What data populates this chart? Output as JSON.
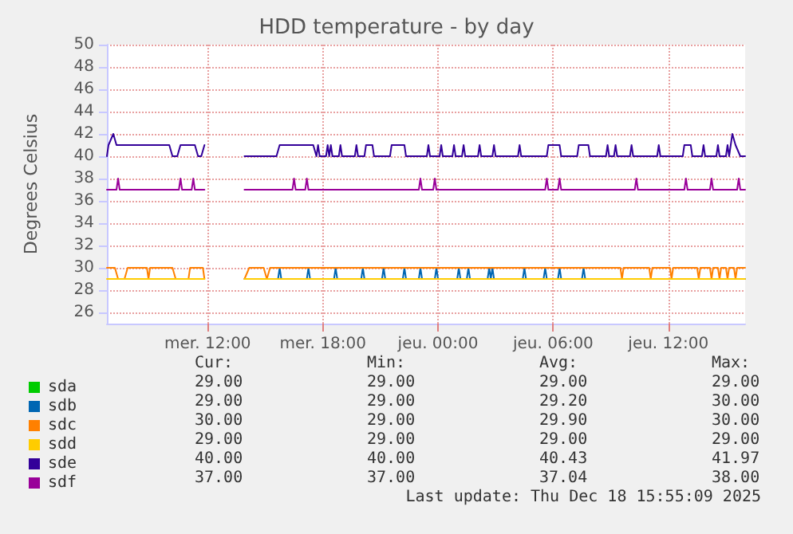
{
  "chart_data": {
    "type": "line",
    "title": "HDD temperature - by day",
    "ylabel": "Degrees Celsius",
    "xlim": [
      "2025-12-17T06:45",
      "2025-12-18T16:00"
    ],
    "xticks": [
      {
        "value": "2025-12-17T12:00",
        "label": "mer. 12:00"
      },
      {
        "value": "2025-12-17T18:00",
        "label": "mer. 18:00"
      },
      {
        "value": "2025-12-18T00:00",
        "label": "jeu. 00:00"
      },
      {
        "value": "2025-12-18T06:00",
        "label": "jeu. 06:00"
      },
      {
        "value": "2025-12-18T12:00",
        "label": "jeu. 12:00"
      }
    ],
    "ylim": [
      25,
      50
    ],
    "yticks": [
      26,
      28,
      30,
      32,
      34,
      36,
      38,
      40,
      42,
      44,
      46,
      48,
      50
    ],
    "grid": true,
    "legend": "bottom left",
    "marker": "none",
    "line_style": "solid",
    "series": [
      {
        "name": "sda",
        "color": "#00cc00"
      },
      {
        "name": "sdb",
        "color": "#0066b3",
        "x": [
          "2025-12-17T13:55",
          "2025-12-17T15:40",
          "2025-12-17T15:45",
          "2025-12-17T15:50",
          "2025-12-17T17:10",
          "2025-12-17T17:15",
          "2025-12-17T17:20",
          "2025-12-17T18:35",
          "2025-12-17T18:40",
          "2025-12-17T18:45",
          "2025-12-17T20:00",
          "2025-12-17T20:05",
          "2025-12-17T20:10",
          "2025-12-17T21:05",
          "2025-12-17T21:10",
          "2025-12-17T21:15",
          "2025-12-17T22:10",
          "2025-12-17T22:15",
          "2025-12-17T22:20",
          "2025-12-17T23:00",
          "2025-12-17T23:05",
          "2025-12-17T23:10",
          "2025-12-17T23:50",
          "2025-12-17T23:55",
          "2025-12-18T00:00",
          "2025-12-18T01:00",
          "2025-12-18T01:05",
          "2025-12-18T01:10",
          "2025-12-18T01:30",
          "2025-12-18T01:35",
          "2025-12-18T01:40",
          "2025-12-18T02:35",
          "2025-12-18T02:40",
          "2025-12-18T02:45",
          "2025-12-18T02:50",
          "2025-12-18T02:55",
          "2025-12-18T04:25",
          "2025-12-18T04:30",
          "2025-12-18T04:35",
          "2025-12-18T05:30",
          "2025-12-18T05:35",
          "2025-12-18T05:40",
          "2025-12-18T06:15",
          "2025-12-18T06:20",
          "2025-12-18T06:25",
          "2025-12-18T07:30",
          "2025-12-18T07:35",
          "2025-12-18T07:40",
          "2025-12-18T16:00"
        ],
        "values": [
          29,
          29,
          30,
          29,
          29,
          30,
          29,
          29,
          30,
          29,
          29,
          30,
          29,
          29,
          30,
          29,
          29,
          30,
          29,
          29,
          30,
          29,
          29,
          30,
          29,
          29,
          30,
          29,
          29,
          30,
          29,
          29,
          30,
          29,
          30,
          29,
          29,
          30,
          29,
          29,
          30,
          29,
          29,
          30,
          29,
          29,
          30,
          29,
          29
        ]
      },
      {
        "name": "sdc",
        "color": "#ff8000",
        "x": [
          "2025-12-17T06:45",
          "2025-12-17T07:10",
          "2025-12-17T07:20",
          "2025-12-17T07:40",
          "2025-12-17T07:50",
          "2025-12-17T08:50",
          "2025-12-17T08:55",
          "2025-12-17T09:00",
          "2025-12-17T10:10",
          "2025-12-17T10:20",
          "2025-12-17T11:00",
          "2025-12-17T11:05",
          "2025-12-17T11:45",
          "2025-12-17T11:50",
          "2025-12-17T12:00",
          "2025-12-17T13:55",
          "2025-12-17T14:10",
          "2025-12-17T14:55",
          "2025-12-17T15:05",
          "2025-12-17T15:15",
          "2025-12-18T09:30",
          "2025-12-18T09:35",
          "2025-12-18T09:40",
          "2025-12-18T11:00",
          "2025-12-18T11:05",
          "2025-12-18T11:10",
          "2025-12-18T12:05",
          "2025-12-18T12:10",
          "2025-12-18T12:15",
          "2025-12-18T13:30",
          "2025-12-18T13:35",
          "2025-12-18T13:40",
          "2025-12-18T14:10",
          "2025-12-18T14:15",
          "2025-12-18T14:20",
          "2025-12-18T14:35",
          "2025-12-18T14:40",
          "2025-12-18T14:45",
          "2025-12-18T15:00",
          "2025-12-18T15:05",
          "2025-12-18T15:10",
          "2025-12-18T15:25",
          "2025-12-18T15:30",
          "2025-12-18T15:35",
          "2025-12-18T16:00"
        ],
        "values": [
          30,
          30,
          29,
          29,
          30,
          30,
          29,
          30,
          30,
          29,
          29,
          30,
          30,
          29,
          null,
          29,
          30,
          30,
          29,
          30,
          30,
          29,
          30,
          30,
          29,
          30,
          30,
          29,
          30,
          30,
          29,
          30,
          30,
          29,
          30,
          30,
          29,
          30,
          30,
          29,
          30,
          30,
          29,
          30,
          30
        ]
      },
      {
        "name": "sdd",
        "color": "#ffcc00",
        "x": [
          "2025-12-17T06:45",
          "2025-12-17T11:50",
          "2025-12-17T12:00",
          "2025-12-17T13:55",
          "2025-12-18T16:00"
        ],
        "values": [
          29,
          29,
          null,
          29,
          29
        ]
      },
      {
        "name": "sde",
        "color": "#330099",
        "x": [
          "2025-12-17T06:45",
          "2025-12-17T06:50",
          "2025-12-17T07:05",
          "2025-12-17T07:15",
          "2025-12-17T10:00",
          "2025-12-17T10:10",
          "2025-12-17T10:25",
          "2025-12-17T10:35",
          "2025-12-17T11:20",
          "2025-12-17T11:30",
          "2025-12-17T11:40",
          "2025-12-17T11:50",
          "2025-12-17T12:00",
          "2025-12-17T13:55",
          "2025-12-17T15:35",
          "2025-12-17T15:45",
          "2025-12-17T17:30",
          "2025-12-17T17:40",
          "2025-12-17T17:45",
          "2025-12-17T17:50",
          "2025-12-17T18:10",
          "2025-12-17T18:15",
          "2025-12-17T18:20",
          "2025-12-17T18:25",
          "2025-12-17T18:30",
          "2025-12-17T18:50",
          "2025-12-17T18:55",
          "2025-12-17T19:00",
          "2025-12-17T19:40",
          "2025-12-17T19:45",
          "2025-12-17T19:50",
          "2025-12-17T20:10",
          "2025-12-17T20:15",
          "2025-12-17T20:35",
          "2025-12-17T20:40",
          "2025-12-17T21:30",
          "2025-12-17T21:35",
          "2025-12-17T22:15",
          "2025-12-17T22:20",
          "2025-12-17T23:25",
          "2025-12-17T23:30",
          "2025-12-17T23:35",
          "2025-12-18T00:05",
          "2025-12-18T00:10",
          "2025-12-18T00:15",
          "2025-12-18T00:45",
          "2025-12-18T00:50",
          "2025-12-18T00:55",
          "2025-12-18T01:15",
          "2025-12-18T01:20",
          "2025-12-18T01:25",
          "2025-12-18T02:05",
          "2025-12-18T02:10",
          "2025-12-18T02:15",
          "2025-12-18T02:50",
          "2025-12-18T02:55",
          "2025-12-18T03:00",
          "2025-12-18T04:10",
          "2025-12-18T04:15",
          "2025-12-18T04:20",
          "2025-12-18T05:40",
          "2025-12-18T05:45",
          "2025-12-18T06:20",
          "2025-12-18T06:25",
          "2025-12-18T07:15",
          "2025-12-18T07:20",
          "2025-12-18T07:50",
          "2025-12-18T07:55",
          "2025-12-18T08:45",
          "2025-12-18T08:50",
          "2025-12-18T08:55",
          "2025-12-18T09:10",
          "2025-12-18T09:15",
          "2025-12-18T09:20",
          "2025-12-18T10:00",
          "2025-12-18T10:05",
          "2025-12-18T10:10",
          "2025-12-18T11:25",
          "2025-12-18T11:30",
          "2025-12-18T11:35",
          "2025-12-18T12:45",
          "2025-12-18T12:50",
          "2025-12-18T13:10",
          "2025-12-18T13:15",
          "2025-12-18T13:45",
          "2025-12-18T13:50",
          "2025-12-18T13:55",
          "2025-12-18T14:30",
          "2025-12-18T14:35",
          "2025-12-18T14:40",
          "2025-12-18T15:00",
          "2025-12-18T15:05",
          "2025-12-18T15:10",
          "2025-12-18T15:15",
          "2025-12-18T15:20",
          "2025-12-18T15:30",
          "2025-12-18T15:45",
          "2025-12-18T16:00"
        ],
        "values": [
          40,
          41,
          42,
          41,
          41,
          40,
          40,
          41,
          41,
          40,
          40,
          41,
          null,
          40,
          40,
          41,
          41,
          40,
          41,
          40,
          40,
          41,
          40,
          41,
          40,
          40,
          41,
          40,
          40,
          41,
          40,
          40,
          41,
          41,
          40,
          40,
          41,
          41,
          40,
          40,
          41,
          40,
          40,
          41,
          40,
          40,
          41,
          40,
          40,
          41,
          40,
          40,
          41,
          40,
          40,
          41,
          40,
          40,
          41,
          40,
          40,
          41,
          41,
          40,
          40,
          41,
          41,
          40,
          40,
          41,
          40,
          40,
          41,
          40,
          40,
          41,
          40,
          40,
          41,
          40,
          40,
          41,
          41,
          40,
          40,
          41,
          40,
          40,
          41,
          40,
          40,
          41,
          40,
          41,
          42,
          41,
          40,
          40
        ]
      },
      {
        "name": "sdf",
        "color": "#990099",
        "x": [
          "2025-12-17T06:45",
          "2025-12-17T07:15",
          "2025-12-17T07:20",
          "2025-12-17T07:25",
          "2025-12-17T10:30",
          "2025-12-17T10:35",
          "2025-12-17T10:40",
          "2025-12-17T11:10",
          "2025-12-17T11:15",
          "2025-12-17T11:20",
          "2025-12-17T11:50",
          "2025-12-17T12:00",
          "2025-12-17T13:55",
          "2025-12-17T16:25",
          "2025-12-17T16:30",
          "2025-12-17T16:35",
          "2025-12-17T17:05",
          "2025-12-17T17:10",
          "2025-12-17T17:15",
          "2025-12-17T23:00",
          "2025-12-17T23:05",
          "2025-12-17T23:10",
          "2025-12-17T23:45",
          "2025-12-17T23:50",
          "2025-12-17T23:55",
          "2025-12-18T05:35",
          "2025-12-18T05:40",
          "2025-12-18T05:45",
          "2025-12-18T06:15",
          "2025-12-18T06:20",
          "2025-12-18T06:25",
          "2025-12-18T10:15",
          "2025-12-18T10:20",
          "2025-12-18T10:25",
          "2025-12-18T12:50",
          "2025-12-18T12:55",
          "2025-12-18T13:00",
          "2025-12-18T14:10",
          "2025-12-18T14:15",
          "2025-12-18T14:20",
          "2025-12-18T15:35",
          "2025-12-18T15:40",
          "2025-12-18T15:45",
          "2025-12-18T16:00"
        ],
        "values": [
          37,
          37,
          38,
          37,
          37,
          38,
          37,
          37,
          38,
          37,
          37,
          null,
          37,
          37,
          38,
          37,
          37,
          38,
          37,
          37,
          38,
          37,
          37,
          38,
          37,
          37,
          38,
          37,
          37,
          38,
          37,
          37,
          38,
          37,
          37,
          38,
          37,
          37,
          38,
          37,
          37,
          38,
          37,
          37
        ]
      }
    ],
    "annotations": [
      "Cur:",
      "Min:",
      "Avg:",
      "Max:",
      "29.00",
      "29.00",
      "29.00",
      "29.00",
      "29.00",
      "29.00",
      "29.20",
      "30.00",
      "30.00",
      "29.00",
      "29.90",
      "30.00",
      "29.00",
      "29.00",
      "29.00",
      "29.00",
      "40.00",
      "40.00",
      "40.43",
      "41.97",
      "37.00",
      "37.00",
      "37.04",
      "38.00",
      "Last update: Thu Dec 18 15:55:09 2025"
    ]
  }
}
